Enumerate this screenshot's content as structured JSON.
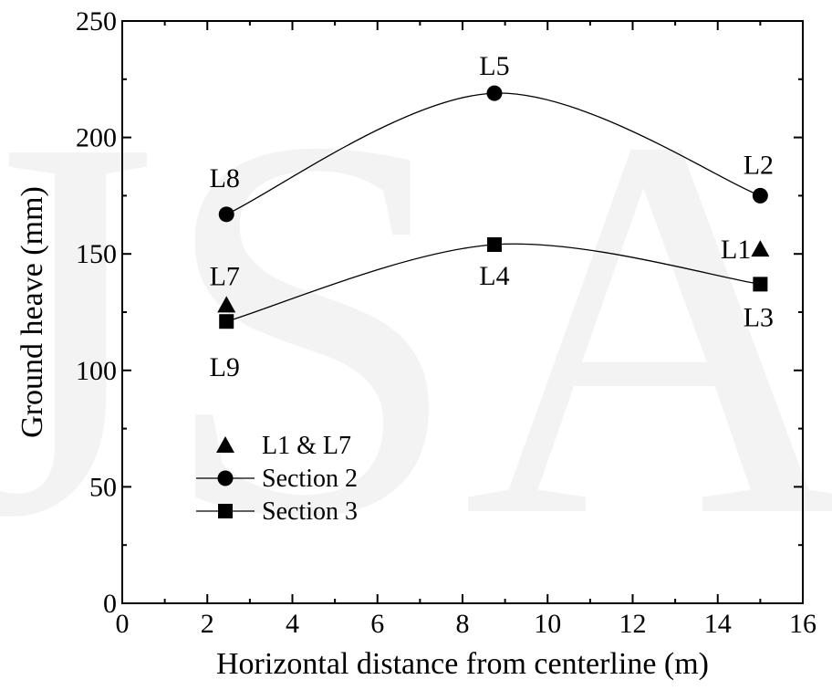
{
  "chart_data": {
    "type": "scatter",
    "title": "",
    "xlabel": "Horizontal distance from centerline (m)",
    "ylabel": "Ground heave (mm)",
    "xlim": [
      0,
      16
    ],
    "ylim": [
      0,
      250
    ],
    "xticks": [
      "0",
      "2",
      "4",
      "6",
      "8",
      "10",
      "12",
      "14",
      "16"
    ],
    "yticks": [
      "0",
      "50",
      "100",
      "150",
      "200",
      "250"
    ],
    "grid": false,
    "legend_position": "lower-left",
    "watermark_text": "JSA",
    "series": [
      {
        "name": "L1 & L7",
        "marker": "triangle",
        "line": false,
        "points": [
          {
            "label": "L7",
            "x": 2.45,
            "y": 128
          },
          {
            "label": "L1",
            "x": 15.0,
            "y": 152
          }
        ]
      },
      {
        "name": "Section 2",
        "marker": "circle",
        "line": true,
        "points": [
          {
            "label": "L8",
            "x": 2.45,
            "y": 167
          },
          {
            "label": "L5",
            "x": 8.75,
            "y": 219
          },
          {
            "label": "L2",
            "x": 15.0,
            "y": 175
          }
        ]
      },
      {
        "name": "Section 3",
        "marker": "square",
        "line": true,
        "points": [
          {
            "label": "L9",
            "x": 2.45,
            "y": 121
          },
          {
            "label": "L4",
            "x": 8.75,
            "y": 154
          },
          {
            "label": "L3",
            "x": 15.0,
            "y": 137
          }
        ]
      }
    ]
  }
}
